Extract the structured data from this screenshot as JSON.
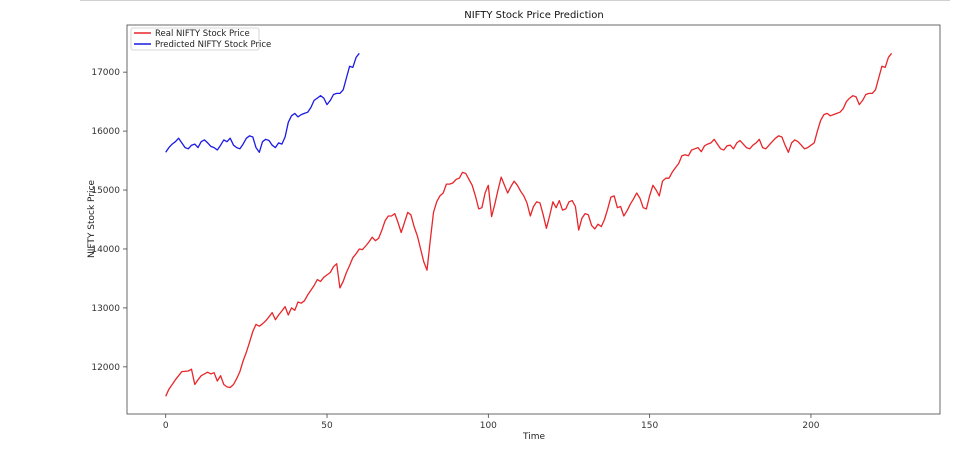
{
  "chart_data": {
    "type": "line",
    "title": "NIFTY Stock Price Prediction",
    "xlabel": "Time",
    "ylabel": "NIFTY Stock Price",
    "xlim": [
      -12,
      240
    ],
    "ylim": [
      11200,
      17800
    ],
    "xticks": [
      0,
      50,
      100,
      150,
      200
    ],
    "yticks": [
      12000,
      13000,
      14000,
      15000,
      16000,
      17000
    ],
    "grid": false,
    "legend_position": "top-left",
    "series": [
      {
        "name": "Real NIFTY Stock Price",
        "color": "#e8262a",
        "points": [
          [
            0,
            11500
          ],
          [
            1,
            11620
          ],
          [
            2,
            11700
          ],
          [
            3,
            11780
          ],
          [
            4,
            11850
          ],
          [
            5,
            11920
          ],
          [
            7,
            11930
          ],
          [
            8,
            11960
          ],
          [
            9,
            11700
          ],
          [
            10,
            11780
          ],
          [
            11,
            11850
          ],
          [
            13,
            11910
          ],
          [
            14,
            11880
          ],
          [
            15,
            11900
          ],
          [
            16,
            11760
          ],
          [
            17,
            11850
          ],
          [
            18,
            11700
          ],
          [
            19,
            11660
          ],
          [
            20,
            11650
          ],
          [
            21,
            11700
          ],
          [
            22,
            11800
          ],
          [
            23,
            11920
          ],
          [
            24,
            12100
          ],
          [
            25,
            12250
          ],
          [
            26,
            12420
          ],
          [
            27,
            12600
          ],
          [
            28,
            12720
          ],
          [
            29,
            12690
          ],
          [
            30,
            12730
          ],
          [
            31,
            12780
          ],
          [
            32,
            12850
          ],
          [
            33,
            12920
          ],
          [
            34,
            12800
          ],
          [
            35,
            12880
          ],
          [
            36,
            12950
          ],
          [
            37,
            13020
          ],
          [
            38,
            12880
          ],
          [
            39,
            13000
          ],
          [
            40,
            12960
          ],
          [
            41,
            13100
          ],
          [
            42,
            13080
          ],
          [
            43,
            13120
          ],
          [
            44,
            13220
          ],
          [
            45,
            13300
          ],
          [
            46,
            13380
          ],
          [
            47,
            13480
          ],
          [
            48,
            13450
          ],
          [
            49,
            13520
          ],
          [
            50,
            13560
          ],
          [
            51,
            13600
          ],
          [
            52,
            13700
          ],
          [
            53,
            13750
          ],
          [
            54,
            13340
          ],
          [
            55,
            13450
          ],
          [
            56,
            13600
          ],
          [
            57,
            13720
          ],
          [
            58,
            13850
          ],
          [
            59,
            13920
          ],
          [
            60,
            14000
          ],
          [
            61,
            13990
          ],
          [
            62,
            14050
          ],
          [
            63,
            14120
          ],
          [
            64,
            14200
          ],
          [
            65,
            14140
          ],
          [
            66,
            14180
          ],
          [
            67,
            14320
          ],
          [
            68,
            14480
          ],
          [
            69,
            14560
          ],
          [
            70,
            14560
          ],
          [
            71,
            14600
          ],
          [
            72,
            14450
          ],
          [
            73,
            14280
          ],
          [
            74,
            14450
          ],
          [
            75,
            14620
          ],
          [
            76,
            14580
          ],
          [
            77,
            14380
          ],
          [
            78,
            14220
          ],
          [
            79,
            14000
          ],
          [
            80,
            13780
          ],
          [
            81,
            13640
          ],
          [
            82,
            14150
          ],
          [
            83,
            14620
          ],
          [
            84,
            14800
          ],
          [
            85,
            14900
          ],
          [
            86,
            14950
          ],
          [
            87,
            15100
          ],
          [
            88,
            15100
          ],
          [
            89,
            15120
          ],
          [
            90,
            15180
          ],
          [
            91,
            15200
          ],
          [
            92,
            15300
          ],
          [
            93,
            15280
          ],
          [
            94,
            15180
          ],
          [
            95,
            15080
          ],
          [
            96,
            14900
          ],
          [
            97,
            14680
          ],
          [
            98,
            14700
          ],
          [
            99,
            14950
          ],
          [
            100,
            15080
          ],
          [
            101,
            14550
          ],
          [
            102,
            14760
          ],
          [
            103,
            15000
          ],
          [
            104,
            15220
          ],
          [
            105,
            15080
          ],
          [
            106,
            14950
          ],
          [
            107,
            15060
          ],
          [
            108,
            15150
          ],
          [
            109,
            15080
          ],
          [
            110,
            14980
          ],
          [
            111,
            14900
          ],
          [
            112,
            14780
          ],
          [
            113,
            14560
          ],
          [
            114,
            14720
          ],
          [
            115,
            14800
          ],
          [
            116,
            14780
          ],
          [
            117,
            14580
          ],
          [
            118,
            14350
          ],
          [
            119,
            14560
          ],
          [
            120,
            14800
          ],
          [
            121,
            14700
          ],
          [
            122,
            14820
          ],
          [
            123,
            14660
          ],
          [
            124,
            14680
          ],
          [
            125,
            14800
          ],
          [
            126,
            14820
          ],
          [
            127,
            14720
          ],
          [
            128,
            14320
          ],
          [
            129,
            14520
          ],
          [
            130,
            14600
          ],
          [
            131,
            14580
          ],
          [
            132,
            14400
          ],
          [
            133,
            14340
          ],
          [
            134,
            14420
          ],
          [
            135,
            14380
          ],
          [
            136,
            14500
          ],
          [
            137,
            14680
          ],
          [
            138,
            14880
          ],
          [
            139,
            14900
          ],
          [
            140,
            14700
          ],
          [
            141,
            14720
          ],
          [
            142,
            14560
          ],
          [
            143,
            14650
          ],
          [
            144,
            14760
          ],
          [
            145,
            14850
          ],
          [
            146,
            14950
          ],
          [
            147,
            14860
          ],
          [
            148,
            14700
          ],
          [
            149,
            14680
          ],
          [
            150,
            14900
          ],
          [
            151,
            15080
          ],
          [
            152,
            15000
          ],
          [
            153,
            14900
          ],
          [
            154,
            15150
          ],
          [
            155,
            15200
          ],
          [
            156,
            15200
          ],
          [
            157,
            15300
          ],
          [
            158,
            15380
          ],
          [
            159,
            15450
          ],
          [
            160,
            15580
          ],
          [
            161,
            15600
          ],
          [
            162,
            15580
          ],
          [
            163,
            15680
          ],
          [
            164,
            15700
          ],
          [
            165,
            15720
          ],
          [
            166,
            15650
          ],
          [
            167,
            15750
          ],
          [
            168,
            15780
          ],
          [
            169,
            15800
          ],
          [
            170,
            15860
          ],
          [
            171,
            15780
          ],
          [
            172,
            15700
          ],
          [
            173,
            15680
          ],
          [
            174,
            15750
          ],
          [
            175,
            15760
          ],
          [
            176,
            15700
          ],
          [
            177,
            15800
          ],
          [
            178,
            15840
          ],
          [
            179,
            15780
          ],
          [
            180,
            15720
          ],
          [
            181,
            15700
          ],
          [
            182,
            15760
          ],
          [
            183,
            15800
          ],
          [
            184,
            15860
          ],
          [
            185,
            15720
          ],
          [
            186,
            15700
          ],
          [
            187,
            15760
          ],
          [
            188,
            15820
          ],
          [
            189,
            15880
          ],
          [
            190,
            15920
          ],
          [
            191,
            15900
          ],
          [
            192,
            15760
          ],
          [
            193,
            15640
          ],
          [
            194,
            15800
          ],
          [
            195,
            15850
          ],
          [
            196,
            15820
          ],
          [
            197,
            15760
          ],
          [
            198,
            15700
          ],
          [
            199,
            15720
          ],
          [
            200,
            15760
          ],
          [
            201,
            15800
          ],
          [
            202,
            16000
          ],
          [
            203,
            16180
          ],
          [
            204,
            16280
          ],
          [
            205,
            16300
          ],
          [
            206,
            16260
          ],
          [
            207,
            16280
          ],
          [
            208,
            16300
          ],
          [
            209,
            16320
          ],
          [
            210,
            16380
          ],
          [
            211,
            16500
          ],
          [
            212,
            16560
          ],
          [
            213,
            16600
          ],
          [
            214,
            16580
          ],
          [
            215,
            16450
          ],
          [
            216,
            16520
          ],
          [
            217,
            16620
          ],
          [
            218,
            16640
          ],
          [
            219,
            16640
          ],
          [
            220,
            16700
          ],
          [
            221,
            16900
          ],
          [
            222,
            17100
          ],
          [
            223,
            17080
          ],
          [
            224,
            17250
          ],
          [
            225,
            17320
          ]
        ]
      },
      {
        "name": "Predicted NIFTY Stock Price",
        "color": "#1a1ae6",
        "points": [
          [
            0,
            15640
          ],
          [
            1,
            15720
          ],
          [
            2,
            15780
          ],
          [
            3,
            15820
          ],
          [
            4,
            15880
          ],
          [
            5,
            15800
          ],
          [
            6,
            15720
          ],
          [
            7,
            15700
          ],
          [
            8,
            15760
          ],
          [
            9,
            15780
          ],
          [
            10,
            15720
          ],
          [
            11,
            15820
          ],
          [
            12,
            15850
          ],
          [
            13,
            15800
          ],
          [
            14,
            15740
          ],
          [
            15,
            15720
          ],
          [
            16,
            15680
          ],
          [
            17,
            15760
          ],
          [
            18,
            15850
          ],
          [
            19,
            15820
          ],
          [
            20,
            15880
          ],
          [
            21,
            15760
          ],
          [
            22,
            15720
          ],
          [
            23,
            15700
          ],
          [
            24,
            15780
          ],
          [
            25,
            15880
          ],
          [
            26,
            15920
          ],
          [
            27,
            15900
          ],
          [
            28,
            15720
          ],
          [
            29,
            15640
          ],
          [
            30,
            15820
          ],
          [
            31,
            15860
          ],
          [
            32,
            15840
          ],
          [
            33,
            15760
          ],
          [
            34,
            15720
          ],
          [
            35,
            15800
          ],
          [
            36,
            15780
          ],
          [
            37,
            15900
          ],
          [
            38,
            16150
          ],
          [
            39,
            16260
          ],
          [
            40,
            16300
          ],
          [
            41,
            16240
          ],
          [
            42,
            16280
          ],
          [
            43,
            16300
          ],
          [
            44,
            16320
          ],
          [
            45,
            16400
          ],
          [
            46,
            16520
          ],
          [
            47,
            16560
          ],
          [
            48,
            16600
          ],
          [
            49,
            16560
          ],
          [
            50,
            16450
          ],
          [
            51,
            16520
          ],
          [
            52,
            16620
          ],
          [
            53,
            16640
          ],
          [
            54,
            16640
          ],
          [
            55,
            16700
          ],
          [
            56,
            16900
          ],
          [
            57,
            17100
          ],
          [
            58,
            17080
          ],
          [
            59,
            17250
          ],
          [
            60,
            17320
          ]
        ]
      }
    ]
  }
}
